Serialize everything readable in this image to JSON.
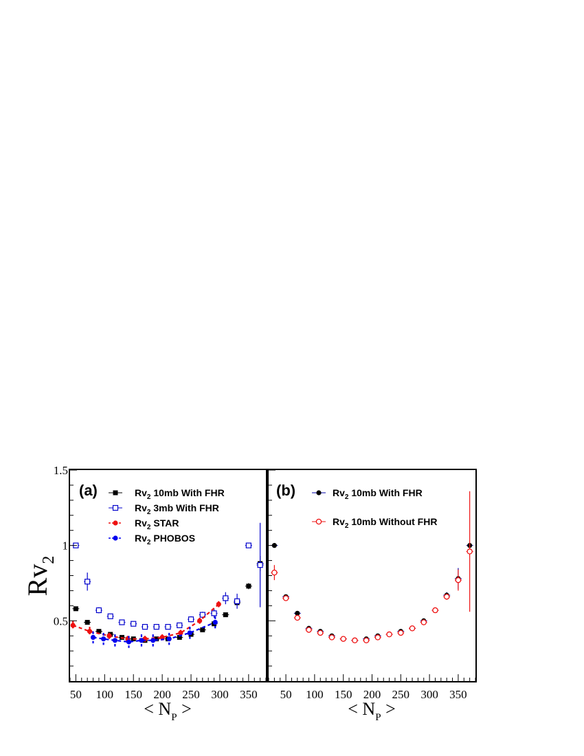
{
  "ylabel": {
    "main": "Rv",
    "sub": "2"
  },
  "xlabel": {
    "left": "< N",
    "sub": "P",
    "right": " >"
  },
  "chart_data": [
    {
      "type": "scatter",
      "panel": "(a)",
      "xlim": [
        40,
        380
      ],
      "ylim": [
        0.1,
        1.5
      ],
      "yticks": [
        0.5,
        1,
        1.5
      ],
      "ytick_labels": [
        "0.5",
        "1",
        "1.5"
      ],
      "xticks": [
        50,
        100,
        150,
        200,
        250,
        300,
        350
      ],
      "xtick_labels": [
        "50",
        "100",
        "150",
        "200",
        "250",
        "300",
        "350"
      ],
      "legend_position": "top-right",
      "series": [
        {
          "name": "Rv2  10mb With FHR",
          "label_main": "Rv",
          "label_sub": "2",
          "label_rest": "  10mb With FHR",
          "color": "#000000",
          "marker": "square-filled",
          "line": "none",
          "x": [
            50,
            70,
            90,
            110,
            130,
            150,
            170,
            190,
            210,
            230,
            250,
            270,
            290,
            310,
            330,
            350,
            370
          ],
          "y": [
            0.58,
            0.49,
            0.43,
            0.41,
            0.39,
            0.38,
            0.37,
            0.38,
            0.38,
            0.39,
            0.41,
            0.44,
            0.48,
            0.54,
            0.62,
            0.73,
            0.88
          ],
          "xerr": [
            6,
            6,
            6,
            6,
            6,
            6,
            6,
            6,
            6,
            6,
            6,
            6,
            6,
            6,
            6,
            6,
            6
          ],
          "yerr": [
            0,
            0,
            0,
            0,
            0,
            0,
            0,
            0,
            0,
            0,
            0,
            0,
            0.01,
            0,
            0.015,
            0.02,
            0.05
          ]
        },
        {
          "name": "Rv2  3mb With FHR",
          "label_main": "Rv",
          "label_sub": "2",
          "label_rest": "  3mb With FHR",
          "color": "#0000cc",
          "marker": "square-open",
          "line": "none",
          "x": [
            50,
            70,
            90,
            110,
            130,
            150,
            170,
            190,
            210,
            230,
            250,
            270,
            290,
            310,
            330,
            350,
            370
          ],
          "y": [
            1.0,
            0.76,
            0.57,
            0.53,
            0.49,
            0.48,
            0.46,
            0.46,
            0.46,
            0.47,
            0.51,
            0.54,
            0.55,
            0.65,
            0.63,
            1.0,
            0.87
          ],
          "xerr": [
            6,
            6,
            6,
            6,
            6,
            6,
            6,
            6,
            6,
            6,
            6,
            6,
            6,
            6,
            6,
            6,
            6
          ],
          "yerr": [
            0,
            0.06,
            0.02,
            0.015,
            0.01,
            0.01,
            0.01,
            0.01,
            0.015,
            0.015,
            0.02,
            0.02,
            0.03,
            0.04,
            0.05,
            0,
            0.28
          ]
        },
        {
          "name": "Rv2  STAR",
          "label_main": "Rv",
          "label_sub": "2",
          "label_rest": "  STAR",
          "color": "#ee1111",
          "marker": "circle-filled",
          "line": "dashed",
          "x": [
            45,
            74,
            108,
            140,
            170,
            200,
            232,
            265,
            298
          ],
          "y": [
            0.47,
            0.43,
            0.4,
            0.38,
            0.38,
            0.39,
            0.42,
            0.5,
            0.61
          ],
          "xerr": [
            0,
            0,
            0,
            0,
            0,
            0,
            0,
            0,
            0
          ],
          "yerr": [
            0.03,
            0.03,
            0.02,
            0.02,
            0.02,
            0.02,
            0.02,
            0.02,
            0.02
          ]
        },
        {
          "name": "Rv2  PHOBOS",
          "label_main": "Rv",
          "label_sub": "2",
          "label_rest": "  PHOBOS",
          "color": "#0000ee",
          "marker": "circle-filled",
          "line": "dashed",
          "x": [
            80,
            98,
            118,
            142,
            164,
            184,
            212,
            248,
            292
          ],
          "y": [
            0.39,
            0.38,
            0.37,
            0.36,
            0.37,
            0.37,
            0.38,
            0.42,
            0.49
          ],
          "xerr": [
            0,
            0,
            0,
            0,
            0,
            0,
            0,
            0,
            0
          ],
          "yerr": [
            0.04,
            0.04,
            0.04,
            0.04,
            0.04,
            0.04,
            0.04,
            0.04,
            0.04
          ]
        }
      ]
    },
    {
      "type": "scatter",
      "panel": "(b)",
      "xlim": [
        20,
        380
      ],
      "ylim": [
        0.1,
        1.5
      ],
      "yticks": [
        0.5,
        1,
        1.5
      ],
      "ytick_labels": [],
      "xticks": [
        50,
        100,
        150,
        200,
        250,
        300,
        350
      ],
      "xtick_labels": [
        "50",
        "100",
        "150",
        "200",
        "250",
        "300",
        "350"
      ],
      "legend_position": "top-right",
      "series": [
        {
          "name": "Rv2  10mb With FHR",
          "label_main": "Rv",
          "label_sub": "2",
          "label_rest": "  10mb With FHR",
          "color": "#000000",
          "marker": "circle-filled",
          "line": "none",
          "bar_color": "#0000aa",
          "x": [
            30,
            50,
            70,
            90,
            110,
            130,
            150,
            170,
            190,
            210,
            230,
            250,
            270,
            290,
            310,
            330,
            350,
            370
          ],
          "y": [
            1.0,
            0.66,
            0.55,
            0.45,
            0.43,
            0.4,
            0.38,
            0.37,
            0.38,
            0.4,
            0.41,
            0.43,
            0.45,
            0.5,
            0.57,
            0.67,
            0.78,
            1.0
          ],
          "xerr": [
            6,
            6,
            6,
            6,
            6,
            6,
            6,
            6,
            6,
            6,
            6,
            6,
            6,
            6,
            6,
            6,
            6,
            6
          ],
          "yerr": [
            0,
            0.01,
            0.01,
            0.005,
            0.005,
            0.005,
            0.005,
            0.005,
            0.005,
            0.005,
            0.005,
            0.005,
            0.005,
            0.01,
            0.01,
            0.02,
            0.07,
            0
          ]
        },
        {
          "name": "Rv2  10mb Without FHR",
          "label_main": "Rv",
          "label_sub": "2",
          "label_rest": "  10mb Without FHR",
          "color": "#ee1111",
          "marker": "circle-open",
          "line": "none",
          "x": [
            30,
            50,
            70,
            90,
            110,
            130,
            150,
            170,
            190,
            210,
            230,
            250,
            270,
            290,
            310,
            330,
            350,
            370
          ],
          "y": [
            0.82,
            0.65,
            0.52,
            0.44,
            0.42,
            0.39,
            0.38,
            0.37,
            0.37,
            0.39,
            0.41,
            0.42,
            0.45,
            0.49,
            0.57,
            0.66,
            0.77,
            0.96
          ],
          "xerr": [
            6,
            6,
            6,
            6,
            6,
            6,
            6,
            6,
            6,
            6,
            6,
            6,
            6,
            6,
            6,
            6,
            6,
            6
          ],
          "yerr": [
            0.05,
            0.015,
            0.015,
            0.01,
            0.01,
            0.01,
            0.01,
            0.01,
            0.01,
            0.01,
            0.01,
            0.01,
            0.01,
            0.01,
            0.015,
            0.02,
            0.07,
            0.4
          ]
        }
      ]
    }
  ]
}
